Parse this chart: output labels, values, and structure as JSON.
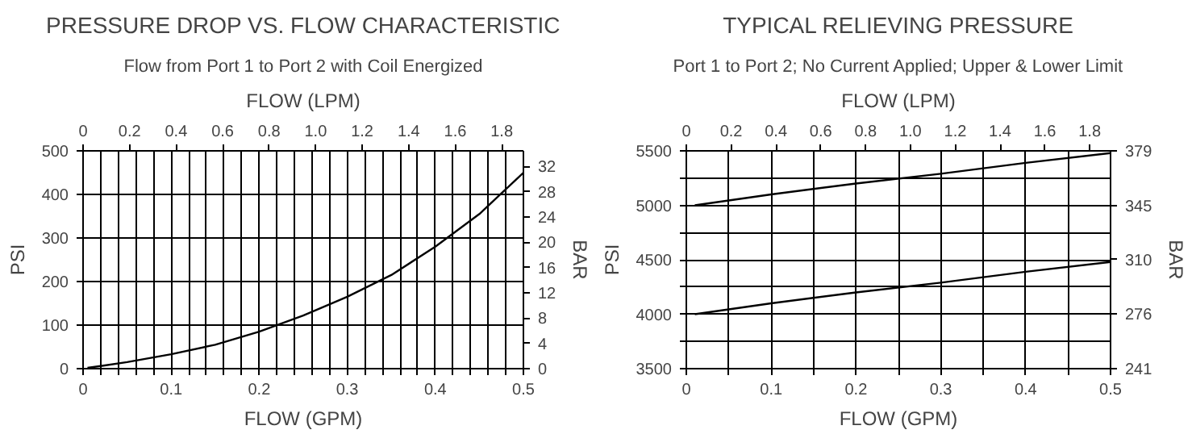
{
  "chart_data": [
    {
      "type": "line",
      "title": "PRESSURE DROP VS. FLOW CHARACTERISTIC",
      "subtitle": "Flow from Port 1 to Port 2 with Coil Energized",
      "xlabel": "FLOW (GPM)",
      "x2label": "FLOW (LPM)",
      "ylabel": "PSI",
      "y2label": "BAR",
      "x": [
        0.005,
        0.02,
        0.05,
        0.1,
        0.15,
        0.2,
        0.25,
        0.3,
        0.35,
        0.4,
        0.45,
        0.5
      ],
      "series": [
        {
          "color": "#000000",
          "values": [
            2,
            6,
            15,
            33,
            55,
            85,
            122,
            165,
            215,
            280,
            355,
            450
          ]
        }
      ],
      "xlim": [
        0,
        0.5
      ],
      "ylim": [
        0,
        500
      ],
      "x2lim": [
        0,
        1.893
      ],
      "y2lim": [
        0,
        34.47
      ],
      "xticks": [
        0,
        {
          "value": 0.02,
          "label": null
        },
        {
          "value": 0.04,
          "label": null
        },
        {
          "value": 0.06,
          "label": null
        },
        {
          "value": 0.08,
          "label": null
        },
        0.1,
        {
          "value": 0.12,
          "label": null
        },
        {
          "value": 0.14,
          "label": null
        },
        {
          "value": 0.16,
          "label": null
        },
        {
          "value": 0.18,
          "label": null
        },
        0.2,
        {
          "value": 0.22,
          "label": null
        },
        {
          "value": 0.24,
          "label": null
        },
        {
          "value": 0.26,
          "label": null
        },
        {
          "value": 0.28,
          "label": null
        },
        0.3,
        {
          "value": 0.32,
          "label": null
        },
        {
          "value": 0.34,
          "label": null
        },
        {
          "value": 0.36,
          "label": null
        },
        {
          "value": 0.38,
          "label": null
        },
        0.4,
        {
          "value": 0.42,
          "label": null
        },
        {
          "value": 0.44,
          "label": null
        },
        {
          "value": 0.46,
          "label": null
        },
        {
          "value": 0.48,
          "label": null
        },
        0.5
      ],
      "yticks": [
        0,
        100,
        200,
        300,
        400,
        500
      ],
      "x2ticks": [
        0,
        0.2,
        0.4,
        0.6,
        0.8,
        {
          "value": 1,
          "label": "1.0"
        },
        1.2,
        1.4,
        1.6,
        1.8
      ],
      "y2ticks": [
        0,
        4,
        8,
        12,
        16,
        20,
        24,
        28,
        32
      ],
      "grid": true
    },
    {
      "type": "line",
      "title": "TYPICAL RELIEVING PRESSURE",
      "subtitle": "Port 1 to Port 2; No Current Applied; Upper & Lower Limit",
      "xlabel": "FLOW (GPM)",
      "x2label": "FLOW (LPM)",
      "ylabel": "PSI",
      "y2label": "BAR",
      "x": [
        0.01,
        0.1,
        0.2,
        0.3,
        0.4,
        0.5
      ],
      "series": [
        {
          "color": "#000000",
          "values": [
            5000,
            5100,
            5200,
            5290,
            5390,
            5480
          ]
        },
        {
          "color": "#000000",
          "values": [
            4000,
            4100,
            4200,
            4290,
            4390,
            4480
          ]
        }
      ],
      "xlim": [
        0,
        0.5
      ],
      "ylim": [
        3500,
        5500
      ],
      "x2lim": [
        0,
        1.893
      ],
      "y2lim": [
        241.3,
        379.2
      ],
      "xticks": [
        0,
        {
          "value": 0.05,
          "label": null
        },
        0.1,
        {
          "value": 0.15,
          "label": null
        },
        0.2,
        {
          "value": 0.25,
          "label": null
        },
        0.3,
        {
          "value": 0.35,
          "label": null
        },
        0.4,
        {
          "value": 0.45,
          "label": null
        },
        0.5
      ],
      "yticks": [
        3500,
        {
          "value": 3750,
          "label": null
        },
        4000,
        {
          "value": 4250,
          "label": null
        },
        4500,
        {
          "value": 4750,
          "label": null
        },
        5000,
        {
          "value": 5250,
          "label": null
        },
        5500
      ],
      "x2ticks": [
        0,
        0.2,
        0.4,
        0.6,
        0.8,
        {
          "value": 1,
          "label": "1.0"
        },
        1.2,
        1.4,
        1.6,
        1.8
      ],
      "y2ticks": [
        {
          "value": 241.3,
          "label": "241"
        },
        {
          "value": 275.8,
          "label": "276"
        },
        {
          "value": 310.3,
          "label": "310"
        },
        {
          "value": 344.7,
          "label": "345"
        },
        {
          "value": 379.2,
          "label": "379"
        }
      ],
      "grid": true
    }
  ]
}
